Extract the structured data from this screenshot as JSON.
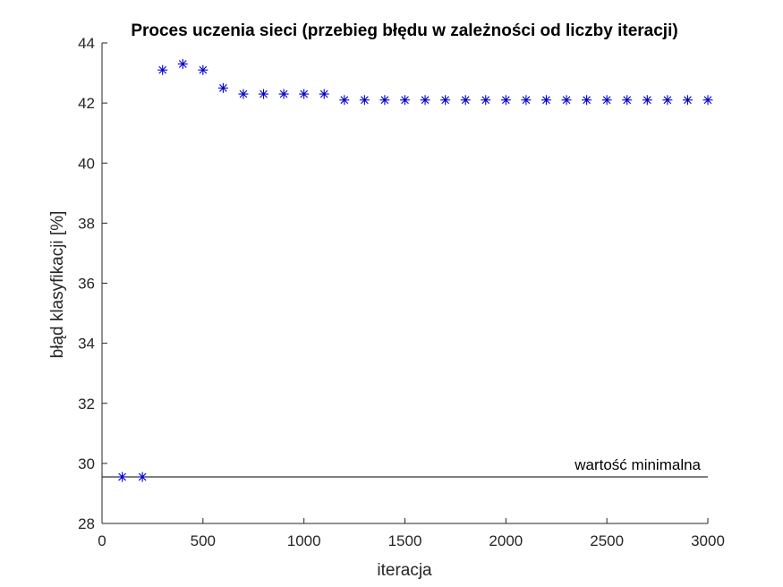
{
  "chart_data": {
    "type": "scatter",
    "title": "Proces uczenia sieci (przebieg błędu w zależności od liczby iteracji)",
    "xlabel": "iteracja",
    "ylabel": "błąd klasyfikacji [%]",
    "xlim": [
      0,
      3000
    ],
    "ylim": [
      28,
      44
    ],
    "xticks": [
      0,
      500,
      1000,
      1500,
      2000,
      2500,
      3000
    ],
    "yticks": [
      28,
      30,
      32,
      34,
      36,
      38,
      40,
      42,
      44
    ],
    "marker": "asterisk",
    "marker_color": "#0000cc",
    "grid": false,
    "series": [
      {
        "x": [
          100,
          200,
          300,
          400,
          500,
          600,
          700,
          800,
          900,
          1000,
          1100,
          1200,
          1300,
          1400,
          1500,
          1600,
          1700,
          1800,
          1900,
          2000,
          2100,
          2200,
          2300,
          2400,
          2500,
          2600,
          2700,
          2800,
          2900,
          3000
        ],
        "y": [
          29.55,
          29.55,
          43.1,
          43.3,
          43.1,
          42.5,
          42.3,
          42.3,
          42.3,
          42.3,
          42.3,
          42.1,
          42.1,
          42.1,
          42.1,
          42.1,
          42.1,
          42.1,
          42.1,
          42.1,
          42.1,
          42.1,
          42.1,
          42.1,
          42.1,
          42.1,
          42.1,
          42.1,
          42.1,
          42.1
        ]
      }
    ],
    "reference_line": {
      "y": 29.55,
      "label": "wartość minimalna",
      "color": "#000000"
    }
  }
}
